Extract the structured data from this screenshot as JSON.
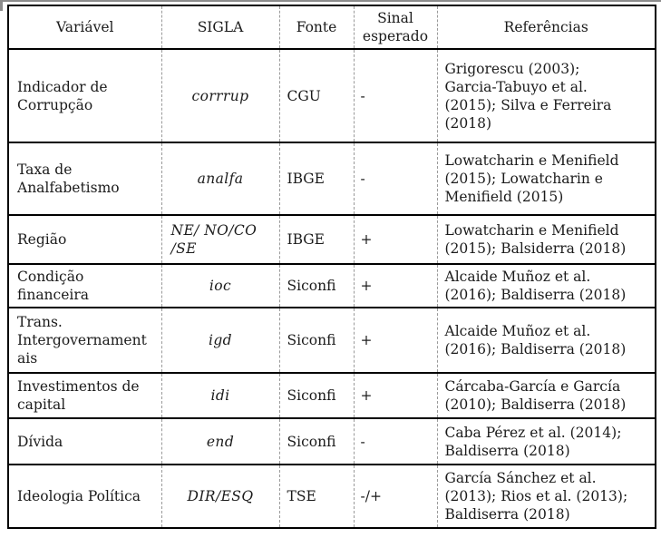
{
  "table": {
    "headers": {
      "variavel": "Variável",
      "sigla": "SIGLA",
      "fonte": "Fonte",
      "sinal": "Sinal\nesperado",
      "referencias": "Referências"
    },
    "rows": [
      {
        "variavel": "Indicador de\nCorrupção",
        "sigla": "corrrup",
        "fonte": "CGU",
        "sinal": "-",
        "referencias": "Grigorescu (2003);\nGarcia-Tabuyo et al.\n(2015); Silva e Ferreira\n(2018)"
      },
      {
        "variavel": "Taxa de\nAnalfabetismo",
        "sigla": "analfa",
        "fonte": "IBGE",
        "sinal": "-",
        "referencias": "Lowatcharin e Menifield\n(2015); Lowatcharin e\nMenifield (2015)"
      },
      {
        "variavel": "Região",
        "sigla": "NE/ NO/CO\n/SE",
        "fonte": "IBGE",
        "sinal": "+",
        "referencias": "Lowatcharin e Menifield\n(2015); Balsiderra (2018)"
      },
      {
        "variavel": "Condição\nfinanceira",
        "sigla": "ioc",
        "fonte": "Siconfi",
        "sinal": "+",
        "referencias": "Alcaide Muñoz et al.\n(2016); Baldiserra (2018)"
      },
      {
        "variavel": "Trans.\nIntergovernament\nais",
        "sigla": "igd",
        "fonte": "Siconfi",
        "sinal": "+",
        "referencias": "Alcaide Muñoz et al.\n(2016); Baldiserra (2018)"
      },
      {
        "variavel": "Investimentos de\ncapital",
        "sigla": "idi",
        "fonte": "Siconfi",
        "sinal": "+",
        "referencias": "Cárcaba-García e García\n(2010); Baldiserra (2018)"
      },
      {
        "variavel": "Dívida",
        "sigla": "end",
        "fonte": "Siconfi",
        "sinal": "-",
        "referencias": "Caba Pérez et al. (2014);\nBaldiserra (2018)"
      },
      {
        "variavel": "Ideologia Política",
        "sigla": "DIR/ESQ",
        "fonte": "TSE",
        "sinal": "-/+",
        "referencias": "García Sánchez et al.\n(2013); Rios et al. (2013);\nBaldiserra (2018)"
      }
    ]
  },
  "colors": {
    "outer_border": "#000000",
    "column_divider": "#9a9a9a",
    "text": "#1b1b1b",
    "background": "#ffffff"
  }
}
